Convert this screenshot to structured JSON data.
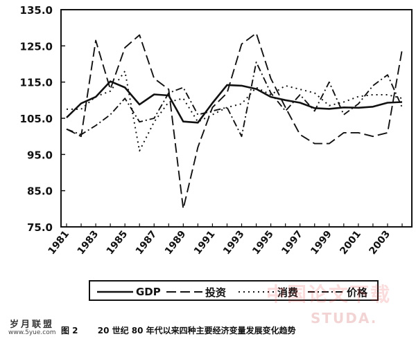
{
  "chart_data": {
    "type": "line",
    "title": "",
    "xlabel": "",
    "ylabel": "",
    "ylim": [
      75.0,
      135.0
    ],
    "y_ticks": [
      75.0,
      85.0,
      95.0,
      105.0,
      115.0,
      125.0,
      135.0
    ],
    "y_tick_labels": [
      "75.0",
      "85.0",
      "95.0",
      "105.0",
      "115.0",
      "125.0",
      "135.0"
    ],
    "x_tick_labels": [
      "1981",
      "1983",
      "1985",
      "1987",
      "1989",
      "1991",
      "1993",
      "1995",
      "1997",
      "1999",
      "2001",
      "2003"
    ],
    "x": [
      1981,
      1982,
      1983,
      1984,
      1985,
      1986,
      1987,
      1988,
      1989,
      1990,
      1991,
      1992,
      1993,
      1994,
      1995,
      1996,
      1997,
      1998,
      1999,
      2000,
      2001,
      2002,
      2003,
      2004
    ],
    "grid": false,
    "legend_position": "bottom",
    "series": [
      {
        "name": "GDP",
        "style": "solid",
        "values": [
          105.2,
          109.1,
          110.9,
          115.2,
          113.5,
          108.8,
          111.6,
          111.3,
          104.1,
          103.8,
          109.2,
          114.2,
          114.0,
          113.1,
          110.9,
          110.0,
          109.3,
          107.8,
          107.6,
          108.0,
          107.9,
          108.2,
          109.3,
          109.5
        ]
      },
      {
        "name": "投资",
        "style": "long-dash",
        "values": [
          102.0,
          100.0,
          126.5,
          113.0,
          124.5,
          128.0,
          116.0,
          113.0,
          80.0,
          97.0,
          108.0,
          112.0,
          125.5,
          128.5,
          116.0,
          108.0,
          100.5,
          98.0,
          98.0,
          101.0,
          101.0,
          100.0,
          101.0,
          124.0
        ]
      },
      {
        "name": "消费",
        "style": "dotted",
        "values": [
          107.5,
          107.5,
          111.0,
          112.5,
          118.0,
          96.0,
          104.0,
          109.5,
          110.5,
          104.0,
          106.0,
          108.0,
          109.0,
          113.5,
          111.5,
          114.0,
          113.0,
          112.0,
          108.5,
          109.5,
          111.0,
          111.5,
          111.5,
          110.5
        ]
      },
      {
        "name": "价格",
        "style": "dash-dot",
        "values": [
          102.0,
          100.5,
          103.0,
          106.0,
          110.5,
          104.0,
          105.0,
          112.0,
          113.5,
          106.0,
          107.0,
          108.0,
          100.0,
          120.5,
          112.0,
          107.0,
          111.5,
          107.0,
          115.0,
          106.0,
          109.0,
          114.0,
          117.0,
          108.0
        ]
      }
    ]
  },
  "caption": {
    "figure_number": "图 2",
    "text": "20 世纪 80 年代以来四种主要经济变量发展变化趋势"
  },
  "watermarks": {
    "site_cn": "岁月联盟",
    "site_url": "www.5yue.com",
    "paper_cn": "中国论文下载",
    "paper_url": "STUDA."
  }
}
